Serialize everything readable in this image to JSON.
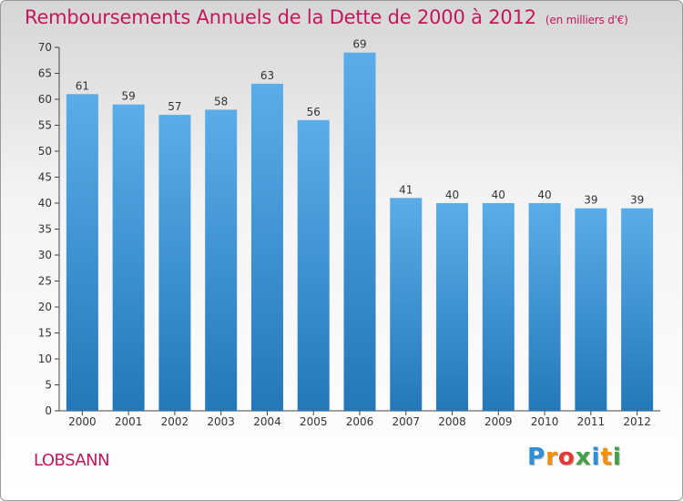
{
  "title": "Remboursements Annuels de la Dette de 2000 à 2012",
  "unit": "(en milliers d'€)",
  "commune": "LOBSANN",
  "brand": {
    "letters": [
      "P",
      "r",
      "o",
      "x",
      "i",
      "t",
      "i"
    ],
    "colors": [
      "#2e8fd6",
      "#f39200",
      "#e53935",
      "#43a047",
      "#2e8fd6",
      "#f39200",
      "#43a047"
    ]
  },
  "colors": {
    "title": "#c2185b",
    "bar_top": "#5aade8",
    "bar_bottom": "#2478b9"
  },
  "chart_data": {
    "type": "bar",
    "categories": [
      "2000",
      "2001",
      "2002",
      "2003",
      "2004",
      "2005",
      "2006",
      "2007",
      "2008",
      "2009",
      "2010",
      "2011",
      "2012"
    ],
    "values": [
      61,
      59,
      57,
      58,
      63,
      56,
      69,
      41,
      40,
      40,
      40,
      39,
      39
    ],
    "ylim": [
      0,
      70
    ],
    "yticks": [
      0,
      5,
      10,
      15,
      20,
      25,
      30,
      35,
      40,
      45,
      50,
      55,
      60,
      65,
      70
    ],
    "grid": false,
    "data_labels": true
  }
}
